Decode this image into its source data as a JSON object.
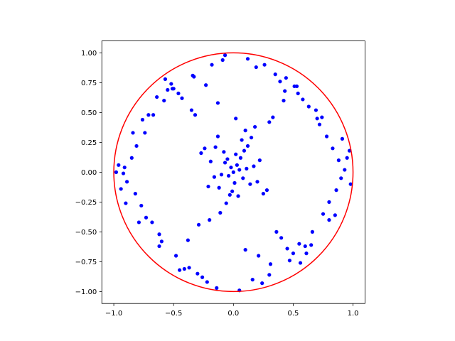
{
  "chart_data": {
    "type": "scatter",
    "title": "",
    "xlabel": "",
    "ylabel": "",
    "xlim": [
      -1.1,
      1.1
    ],
    "ylim": [
      -1.1,
      1.1
    ],
    "grid": false,
    "legend": "none",
    "x_ticks": [
      "−1.0",
      "−0.5",
      "0.0",
      "0.5",
      "1.0"
    ],
    "y_ticks": [
      "−1.00",
      "−0.75",
      "−0.50",
      "−0.25",
      "0.00",
      "0.25",
      "0.50",
      "0.75",
      "1.00"
    ],
    "x_tick_values": [
      -1.0,
      -0.5,
      0.0,
      0.5,
      1.0
    ],
    "y_tick_values": [
      -1.0,
      -0.75,
      -0.5,
      -0.25,
      0.0,
      0.25,
      0.5,
      0.75,
      1.0
    ],
    "series": [
      {
        "kind": "points",
        "color": "#0000ff",
        "x": [
          0.0,
          0.05,
          -0.04,
          0.03,
          -0.02,
          0.08,
          -0.07,
          0.01,
          0.11,
          -0.1,
          0.06,
          -0.05,
          0.14,
          -0.12,
          0.02,
          -0.01,
          0.09,
          -0.08,
          0.04,
          -0.03,
          0.17,
          -0.16,
          0.12,
          -0.15,
          0.2,
          -0.19,
          0.07,
          -0.06,
          0.22,
          -0.21,
          0.15,
          -0.13,
          0.25,
          -0.24,
          0.1,
          -0.11,
          0.28,
          -0.27,
          0.18,
          -0.2,
          0.3,
          -0.29,
          0.33,
          -0.32,
          0.36,
          -0.35,
          0.4,
          -0.38,
          0.42,
          -0.43,
          0.45,
          -0.46,
          0.5,
          -0.48,
          0.53,
          -0.52,
          0.56,
          -0.57,
          0.6,
          -0.58,
          0.63,
          -0.62,
          0.66,
          -0.67,
          0.7,
          -0.68,
          0.72,
          -0.73,
          0.75,
          -0.74,
          0.78,
          -0.77,
          0.8,
          -0.81,
          0.83,
          -0.82,
          0.86,
          -0.85,
          0.88,
          -0.89,
          0.9,
          -0.91,
          0.93,
          -0.92,
          0.95,
          -0.94,
          0.97,
          -0.96,
          0.98,
          -0.98,
          0.35,
          -0.3,
          0.26,
          -0.22,
          0.44,
          -0.41,
          0.51,
          -0.55,
          0.61,
          -0.64,
          0.12,
          -0.14,
          0.19,
          -0.18,
          0.3,
          -0.33,
          0.47,
          -0.5,
          0.58,
          -0.6,
          0.69,
          -0.71,
          0.8,
          -0.79,
          0.05,
          -0.07,
          0.16,
          -0.09,
          0.24,
          -0.26,
          0.39,
          -0.37,
          0.54,
          -0.51,
          0.65,
          -0.62,
          0.74,
          -0.76,
          0.85,
          -0.84,
          0.91,
          -0.9,
          0.02,
          0.1,
          -0.13,
          0.21,
          -0.23,
          0.31,
          -0.34,
          0.43,
          -0.45,
          0.55
        ],
        "y": [
          0.0,
          0.02,
          -0.03,
          0.06,
          0.04,
          -0.05,
          0.08,
          -0.09,
          0.03,
          -0.02,
          0.12,
          0.11,
          -0.1,
          -0.13,
          0.15,
          -0.16,
          0.18,
          0.17,
          -0.2,
          -0.19,
          0.05,
          -0.04,
          0.22,
          0.21,
          -0.08,
          0.09,
          0.27,
          -0.26,
          0.1,
          -0.12,
          0.29,
          0.3,
          -0.18,
          0.2,
          0.35,
          -0.34,
          -0.15,
          0.16,
          0.38,
          -0.4,
          0.42,
          -0.44,
          0.46,
          0.48,
          -0.5,
          0.52,
          -0.55,
          -0.57,
          0.6,
          0.62,
          -0.64,
          0.66,
          -0.68,
          -0.7,
          0.72,
          0.74,
          -0.76,
          0.78,
          -0.62,
          0.6,
          0.55,
          -0.52,
          -0.5,
          0.48,
          0.45,
          -0.42,
          0.4,
          -0.38,
          -0.35,
          0.33,
          0.3,
          -0.28,
          -0.25,
          0.22,
          0.2,
          -0.18,
          -0.15,
          0.12,
          0.1,
          -0.08,
          -0.05,
          0.04,
          0.02,
          -0.01,
          0.12,
          -0.14,
          0.18,
          0.06,
          -0.1,
          0.0,
          0.82,
          -0.85,
          0.9,
          -0.92,
          0.79,
          -0.81,
          0.72,
          0.69,
          -0.68,
          0.63,
          0.95,
          -0.97,
          0.88,
          0.9,
          -0.86,
          0.8,
          -0.74,
          0.7,
          0.61,
          -0.58,
          0.52,
          0.48,
          -0.4,
          -0.42,
          -0.99,
          0.98,
          -0.9,
          0.94,
          -0.93,
          -0.88,
          0.76,
          -0.8,
          0.66,
          0.7,
          -0.61,
          -0.62,
          0.46,
          0.44,
          -0.36,
          0.33,
          0.28,
          -0.26,
          0.45,
          -0.65,
          0.58,
          -0.7,
          0.73,
          -0.77,
          0.81,
          0.68,
          -0.82,
          -0.6
        ]
      },
      {
        "kind": "circle",
        "color": "#ff0000",
        "center": [
          0,
          0
        ],
        "radius": 1.0
      }
    ]
  }
}
